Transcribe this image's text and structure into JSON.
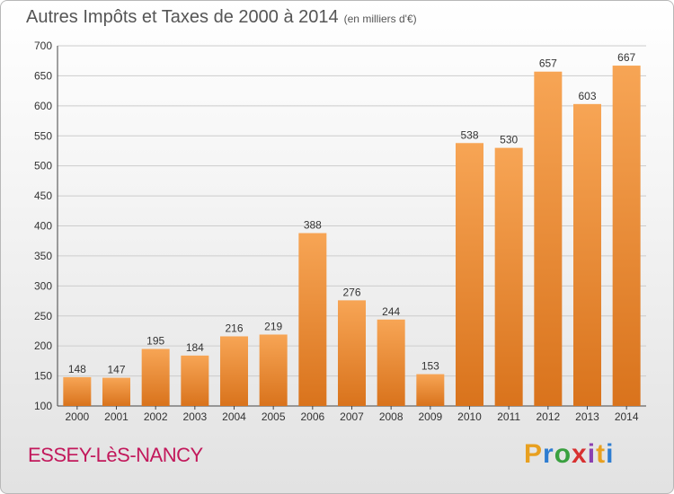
{
  "header": {
    "title": "Autres Impôts et Taxes de 2000 à 2014",
    "unit": "(en milliers d'€)"
  },
  "footer": {
    "commune": "ESSEY-LèS-NANCY",
    "logo": [
      "P",
      "r",
      "o",
      "x",
      "i",
      "t",
      "i"
    ]
  },
  "chart_data": {
    "type": "bar",
    "title": "Autres Impôts et Taxes de 2000 à 2014",
    "subtitle": "(en milliers d'€)",
    "xlabel": "",
    "ylabel": "",
    "categories": [
      "2000",
      "2001",
      "2002",
      "2003",
      "2004",
      "2005",
      "2006",
      "2007",
      "2008",
      "2009",
      "2010",
      "2011",
      "2012",
      "2013",
      "2014"
    ],
    "values": [
      148,
      147,
      195,
      184,
      216,
      219,
      388,
      276,
      244,
      153,
      538,
      530,
      657,
      603,
      667
    ],
    "ylim": [
      100,
      700
    ],
    "yticks": [
      100,
      150,
      200,
      250,
      300,
      350,
      400,
      450,
      500,
      550,
      600,
      650,
      700
    ],
    "grid": true,
    "legend": "none",
    "colors": {
      "bar_light": "#f7a555",
      "bar_dark": "#d9731c",
      "grid": "#cccccc"
    }
  }
}
